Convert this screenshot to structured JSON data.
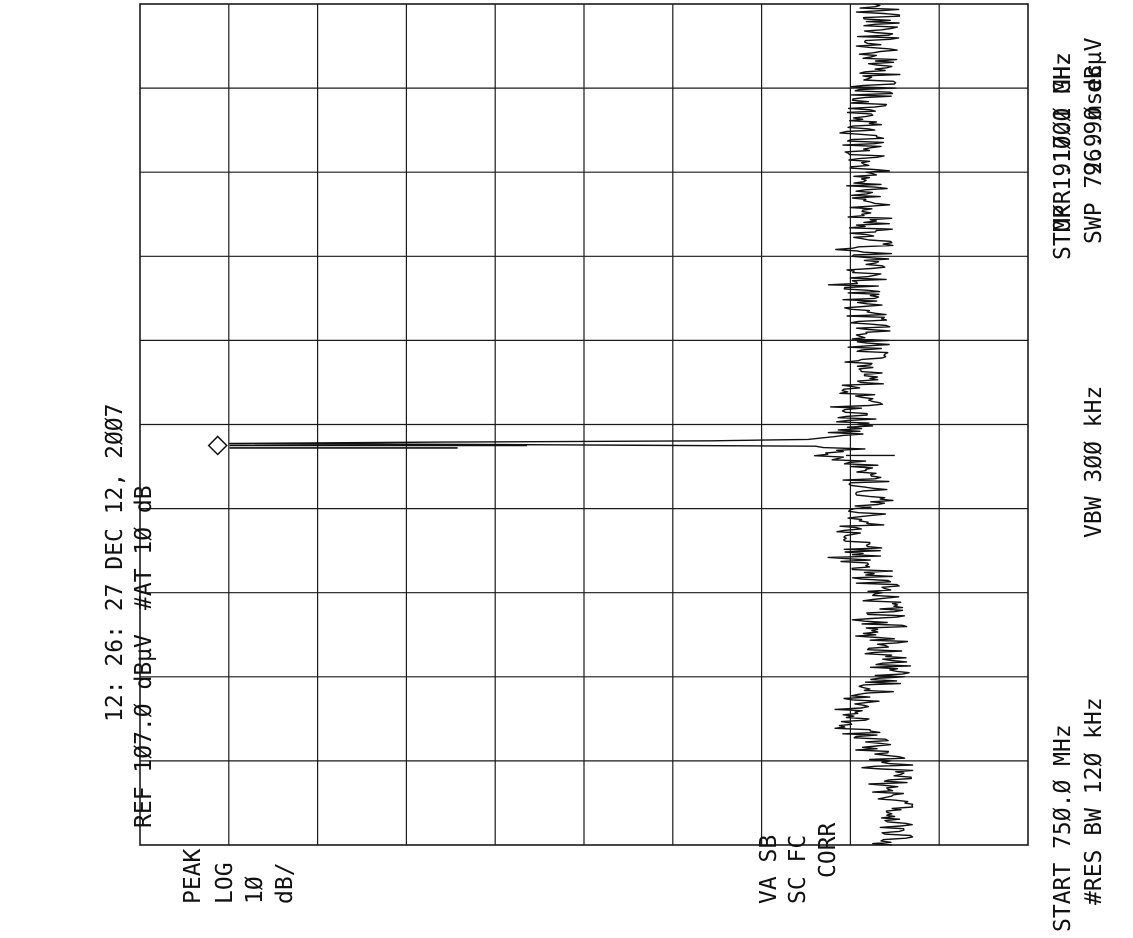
{
  "header": {
    "timestamp": "12: 26: 27 DEC 12, 2ØØ7",
    "ref_level": "REF 1Ø7.Ø dBµV",
    "attenuation": "#AT 1Ø dB",
    "marker_freq": "MKR 917.1 MHz",
    "marker_level": "96.9Ø dBµV"
  },
  "side_labels": {
    "detector": "PEAK",
    "scale_type": "LOG",
    "scale_value": "1Ø",
    "scale_unit": "dB/",
    "flags_1": "VA SB",
    "flags_2": "SC FC",
    "flags_3": "CORR"
  },
  "footer": {
    "start": "START 75Ø.Ø MHz",
    "stop": "STOP 1.1ØØØ GHz",
    "res_bw": "#RES BW 12Ø kHz",
    "vbw": "VBW 3ØØ kHz",
    "sweep": "SWP 72.9 msec"
  },
  "chart_data": {
    "type": "line",
    "x_unit": "MHz",
    "y_unit": "dBµV",
    "xlim": [
      750.0,
      1100.0
    ],
    "ylim": [
      7.0,
      107.0
    ],
    "grid": true,
    "grid_divisions": {
      "x": 10,
      "y": 10
    },
    "trace_color": "#111111",
    "grid_color": "#1a1a1a",
    "noise_floor": 21,
    "series": [
      {
        "points": [
          [
            750,
            21.5
          ],
          [
            785,
            22.5
          ],
          [
            803,
            27.5
          ],
          [
            820,
            22.5
          ],
          [
            855,
            23.5
          ],
          [
            877,
            26.5
          ],
          [
            895,
            24.5
          ],
          [
            909,
            26.0
          ],
          [
            913,
            27.5
          ],
          [
            915,
            26.0
          ],
          [
            916,
            30.0
          ],
          [
            917.1,
            96.9
          ],
          [
            918.5,
            30.0
          ],
          [
            921,
            27.5
          ],
          [
            925,
            26.5
          ],
          [
            932,
            25.5
          ],
          [
            945,
            26.0
          ],
          [
            960,
            25.0
          ],
          [
            985,
            25.5
          ],
          [
            1000,
            24.5
          ],
          [
            1020,
            25.0
          ],
          [
            1045,
            25.5
          ],
          [
            1070,
            24.0
          ],
          [
            1100,
            24.0
          ]
        ]
      }
    ],
    "marker": {
      "x": 917.1,
      "y": 96.9,
      "shape": "diamond"
    }
  }
}
